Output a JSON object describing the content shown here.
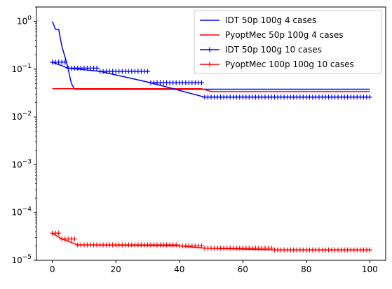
{
  "chart_data": {
    "type": "line",
    "title": "",
    "xlabel": "",
    "ylabel": "",
    "xlim": [
      -5,
      105
    ],
    "ylim": [
      1e-05,
      2
    ],
    "yscale": "log",
    "grid": false,
    "legend_position": "top-right",
    "x_ticks": [
      0,
      20,
      40,
      60,
      80,
      100
    ],
    "x_tick_labels": [
      "0",
      "20",
      "40",
      "60",
      "80",
      "100"
    ],
    "y_ticks": [
      {
        "value": 1,
        "mantissa": "10",
        "exponent": "0"
      },
      {
        "value": 0.1,
        "mantissa": "10",
        "exponent": "−1"
      },
      {
        "value": 0.01,
        "mantissa": "10",
        "exponent": "−2"
      },
      {
        "value": 0.001,
        "mantissa": "10",
        "exponent": "−3"
      },
      {
        "value": 0.0001,
        "mantissa": "10",
        "exponent": "−4"
      },
      {
        "value": 1e-05,
        "mantissa": "10",
        "exponent": "−5"
      }
    ],
    "series": [
      {
        "name": "IDT 50p 100g 4 cases",
        "color": "#0000ff",
        "marker": "none",
        "x": [
          0,
          1,
          2,
          3,
          4,
          5,
          6,
          7,
          100
        ],
        "y": [
          1.0,
          0.68,
          0.68,
          0.3,
          0.18,
          0.1,
          0.05,
          0.038,
          0.038
        ]
      },
      {
        "name": "PyoptMec 50p 100g 4 cases",
        "color": "#ff0000",
        "marker": "none",
        "x": [
          0,
          47,
          50,
          100
        ],
        "y": [
          0.039,
          0.039,
          0.034,
          0.034
        ]
      },
      {
        "name": "IDT 50p 100g 10 cases",
        "color": "#0000ff",
        "marker": "plus",
        "x": [
          0,
          5,
          15,
          31,
          48,
          100
        ],
        "y": [
          0.14,
          0.105,
          0.09,
          0.052,
          0.026,
          0.026
        ]
      },
      {
        "name": "PyoptMec 100p 100g 10 cases",
        "color": "#ff0000",
        "marker": "plus",
        "x": [
          0,
          3,
          8,
          40,
          48,
          70,
          100
        ],
        "y": [
          3.7e-05,
          2.8e-05,
          2.1e-05,
          2e-05,
          1.8e-05,
          1.65e-05,
          1.65e-05
        ]
      }
    ]
  }
}
